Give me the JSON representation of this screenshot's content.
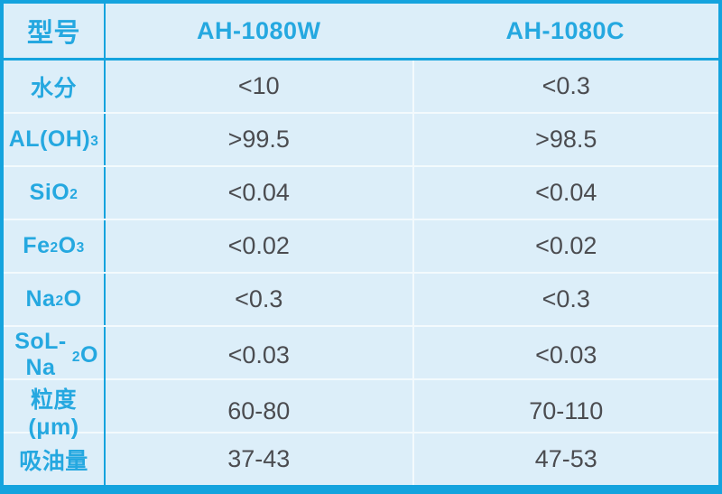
{
  "table": {
    "header": {
      "col1": "型号",
      "col2": "AH-1080W",
      "col3": "AH-1080C"
    },
    "rows": [
      {
        "label": "水分",
        "v1": "<10",
        "v2": "<0.3"
      },
      {
        "label": "AL(OH)~3~",
        "v1": ">99.5",
        "v2": ">98.5"
      },
      {
        "label": "SiO~2~",
        "v1": "<0.04",
        "v2": "<0.04"
      },
      {
        "label": "Fe~2~O~3~",
        "v1": "<0.02",
        "v2": "<0.02"
      },
      {
        "label": "Na~2~O",
        "v1": "<0.3",
        "v2": "<0.3"
      },
      {
        "label": "SoL-Na~2~O",
        "v1": "<0.03",
        "v2": "<0.03"
      },
      {
        "label": "粒度(μm)",
        "v1": "60-80",
        "v2": "70-110"
      },
      {
        "label": "吸油量",
        "v1": "37-43",
        "v2": "47-53"
      }
    ],
    "colors": {
      "accent_border": "#14a3de",
      "header_text": "#25a8e0",
      "cell_background": "#dceef9",
      "row_divider": "#f3fafd",
      "value_text": "#4b4c50"
    }
  }
}
